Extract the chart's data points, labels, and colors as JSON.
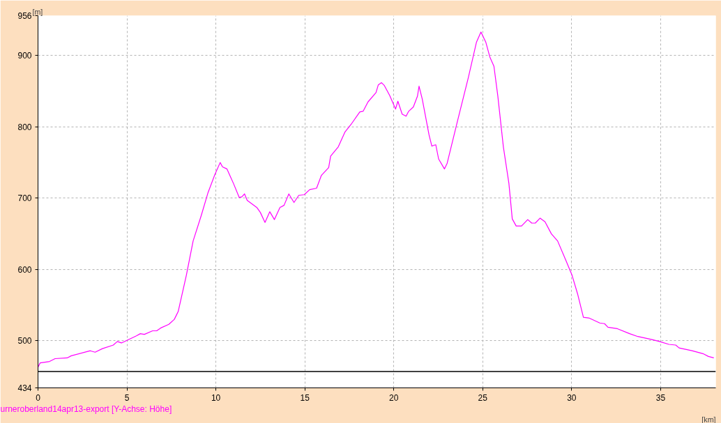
{
  "chart_data": {
    "type": "line",
    "xlabel": "[km]",
    "ylabel": "[m]",
    "annotations": [
      "urneroberland14apr13-export [Y-Achse: Höhe]"
    ],
    "xlim": [
      0,
      38.1
    ],
    "ylim": [
      434,
      956
    ],
    "xticks": [
      0,
      5,
      10,
      15,
      20,
      25,
      30,
      35
    ],
    "yticks": [
      434,
      500,
      600,
      700,
      800,
      900,
      956
    ],
    "grid": true,
    "marker": "none",
    "line_style": "solid",
    "ref_lines": [
      {
        "axis": "y",
        "value": 457,
        "label": null,
        "color": "#000000"
      }
    ],
    "series": [
      {
        "color": "#ff00ff",
        "x": [
          0,
          0.12,
          0.65,
          0.96,
          1.64,
          1.87,
          2.94,
          3.21,
          3.62,
          4.23,
          4.46,
          4.69,
          5.53,
          5.75,
          5.98,
          6.44,
          6.67,
          6.9,
          7.35,
          7.66,
          7.88,
          8.34,
          8.72,
          9.18,
          9.56,
          9.94,
          10.24,
          10.37,
          10.62,
          11.0,
          11.31,
          11.46,
          11.61,
          11.76,
          12.3,
          12.5,
          12.76,
          13.03,
          13.29,
          13.6,
          13.83,
          14.1,
          14.39,
          14.66,
          14.97,
          15.27,
          15.66,
          15.93,
          16.34,
          16.45,
          16.88,
          17.26,
          17.64,
          18.09,
          18.28,
          18.55,
          19.0,
          19.13,
          19.31,
          19.47,
          19.77,
          20.1,
          20.23,
          20.47,
          20.69,
          20.84,
          21.1,
          21.33,
          21.42,
          21.6,
          21.98,
          22.14,
          22.36,
          22.52,
          22.85,
          23.0,
          23.58,
          24.19,
          24.65,
          24.9,
          25.17,
          25.4,
          25.63,
          25.85,
          26.16,
          26.47,
          26.66,
          26.88,
          27.18,
          27.53,
          27.76,
          27.95,
          28.22,
          28.5,
          28.86,
          29.21,
          29.67,
          30.02,
          30.33,
          30.66,
          30.97,
          31.58,
          31.85,
          32.04,
          32.57,
          33.26,
          33.72,
          34.48,
          34.94,
          35.47,
          35.85,
          36.04,
          36.77,
          37.38,
          37.69,
          37.99
        ],
        "values": [
          463,
          469,
          471,
          475,
          476,
          479,
          486,
          484,
          489,
          494,
          499,
          497,
          507,
          510,
          509,
          514,
          514,
          518,
          523,
          530,
          541,
          592,
          640,
          676,
          708,
          733,
          750,
          744,
          741,
          720,
          701,
          702,
          706,
          697,
          687,
          680,
          666,
          681,
          670,
          687,
          690,
          706,
          694,
          704,
          705,
          712,
          714,
          732,
          743,
          759,
          772,
          793,
          805,
          821,
          822,
          835,
          848,
          859,
          862,
          858,
          844,
          825,
          836,
          818,
          815,
          822,
          828,
          843,
          857,
          839,
          789,
          773,
          775,
          755,
          741,
          749,
          808,
          869,
          919,
          933,
          919,
          898,
          885,
          843,
          772,
          721,
          671,
          661,
          661,
          670,
          665,
          665,
          672,
          667,
          650,
          640,
          613,
          592,
          566,
          533,
          532,
          525,
          524,
          519,
          517,
          510,
          506,
          502,
          499,
          495,
          494,
          490,
          486,
          482,
          478,
          476
        ]
      }
    ]
  }
}
